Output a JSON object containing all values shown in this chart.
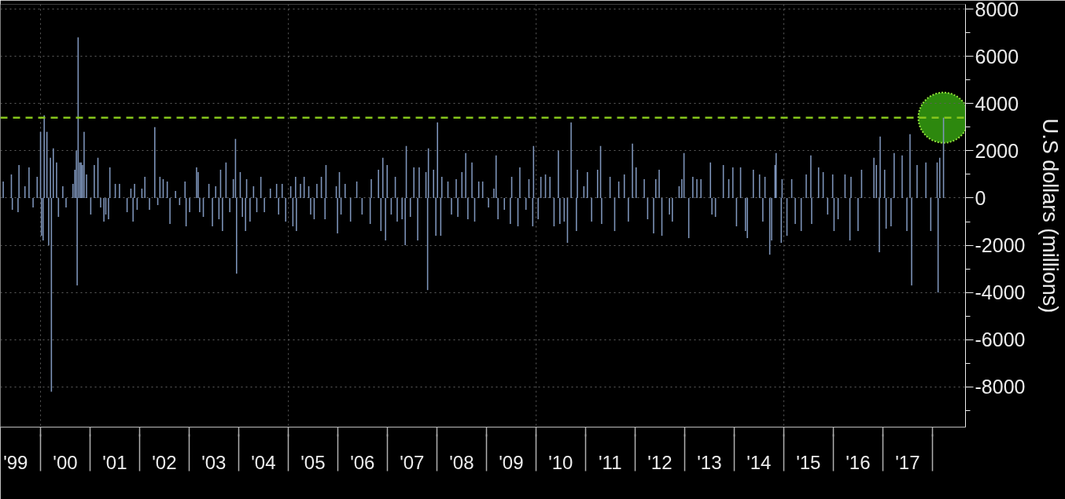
{
  "chart_data": {
    "type": "bar",
    "ylabel": "U.S dollars (millions)",
    "xlim": [
      "1999-03-11",
      "2018-09-01"
    ],
    "xticks": [
      {
        "value": "1999-07-01",
        "label": "'99"
      },
      {
        "value": "2000-07-01",
        "label": "'00"
      },
      {
        "value": "2001-07-01",
        "label": "'01"
      },
      {
        "value": "2002-07-01",
        "label": "'02"
      },
      {
        "value": "2003-07-01",
        "label": "'03"
      },
      {
        "value": "2004-07-01",
        "label": "'04"
      },
      {
        "value": "2005-07-01",
        "label": "'05"
      },
      {
        "value": "2006-07-01",
        "label": "'06"
      },
      {
        "value": "2007-07-01",
        "label": "'07"
      },
      {
        "value": "2008-07-01",
        "label": "'08"
      },
      {
        "value": "2009-07-01",
        "label": "'09"
      },
      {
        "value": "2010-07-01",
        "label": "'10"
      },
      {
        "value": "2011-07-01",
        "label": "'11"
      },
      {
        "value": "2012-07-01",
        "label": "'12"
      },
      {
        "value": "2013-07-01",
        "label": "'13"
      },
      {
        "value": "2014-07-01",
        "label": "'14"
      },
      {
        "value": "2015-07-01",
        "label": "'15"
      },
      {
        "value": "2016-07-01",
        "label": "'16"
      },
      {
        "value": "2017-07-01",
        "label": "'17"
      },
      {
        "value": "2000-01-01",
        "label": null
      },
      {
        "value": "2001-01-01",
        "label": null
      },
      {
        "value": "2002-01-01",
        "label": null
      },
      {
        "value": "2003-01-01",
        "label": null
      },
      {
        "value": "2004-01-01",
        "label": null
      },
      {
        "value": "2005-01-01",
        "label": null
      },
      {
        "value": "2006-01-01",
        "label": null
      },
      {
        "value": "2007-01-01",
        "label": null
      },
      {
        "value": "2008-01-01",
        "label": null
      },
      {
        "value": "2009-01-01",
        "label": null
      },
      {
        "value": "2010-01-01",
        "label": null
      },
      {
        "value": "2011-01-01",
        "label": null
      },
      {
        "value": "2012-01-01",
        "label": null
      },
      {
        "value": "2013-01-01",
        "label": null
      },
      {
        "value": "2014-01-01",
        "label": null
      },
      {
        "value": "2015-01-01",
        "label": null
      },
      {
        "value": "2016-01-01",
        "label": null
      },
      {
        "value": "2017-01-01",
        "label": null
      },
      {
        "value": "2018-01-01",
        "label": null
      }
    ],
    "ylim": [
      -9700,
      8200
    ],
    "yticks": [
      {
        "value": -9000,
        "label": null
      },
      -8000,
      {
        "value": -7000,
        "label": null
      },
      -6000,
      {
        "value": -5000,
        "label": null
      },
      -4000,
      {
        "value": -3000,
        "label": null
      },
      -2000,
      {
        "value": -1000,
        "label": null
      },
      0,
      {
        "value": 1000,
        "label": null
      },
      2000,
      {
        "value": 3000,
        "label": null
      },
      4000,
      {
        "value": 5000,
        "label": null
      },
      6000,
      {
        "value": 7000,
        "label": null
      },
      8000
    ],
    "grid": "y",
    "ref_lines": [
      {
        "axis": "x",
        "value": "2000-01-01",
        "color": "#5e5e5e",
        "line_style": "dotted"
      },
      {
        "axis": "x",
        "value": "2005-01-01",
        "color": "#5e5e5e",
        "line_style": "dotted"
      },
      {
        "axis": "x",
        "value": "2010-01-01",
        "color": "#5e5e5e",
        "line_style": "dotted"
      },
      {
        "axis": "x",
        "value": "2015-01-01",
        "color": "#5e5e5e",
        "line_style": "dotted"
      },
      {
        "axis": "y",
        "value": 3400,
        "color": "#86c51c",
        "line_style": "dashed"
      }
    ],
    "x": [
      "1999-04-01",
      "1999-05-31",
      "1999-06-07",
      "1999-07-19",
      "1999-07-26",
      "1999-09-08",
      "1999-10-08",
      "1999-11-07",
      "1999-12-07",
      "2000-01-01",
      "2000-01-08",
      "2000-01-20",
      "2000-01-28",
      "2000-02-17",
      "2000-03-01",
      "2000-03-14",
      "2000-03-21",
      "2000-04-04",
      "2000-04-28",
      "2000-05-12",
      "2000-06-13",
      "2000-07-07",
      "2000-08-27",
      "2000-09-10",
      "2000-09-21",
      "2000-09-27",
      "2000-10-04",
      "2000-10-16",
      "2000-10-26",
      "2000-11-05",
      "2000-11-17",
      "2000-12-05",
      "2001-01-05",
      "2001-01-31",
      "2001-02-27",
      "2001-03-19",
      "2001-04-12",
      "2001-04-26",
      "2001-05-16",
      "2001-05-26",
      "2001-07-05",
      "2001-08-05",
      "2001-09-30",
      "2001-10-28",
      "2001-11-13",
      "2001-11-24",
      "2001-12-13",
      "2002-01-17",
      "2002-02-08",
      "2002-03-14",
      "2002-04-22",
      "2002-05-14",
      "2002-05-30",
      "2002-06-23",
      "2002-07-23",
      "2002-08-12",
      "2002-09-22",
      "2002-10-22",
      "2002-12-01",
      "2002-12-09",
      "2003-01-04",
      "2003-02-24",
      "2003-03-08",
      "2003-03-19",
      "2003-04-15",
      "2003-05-26",
      "2003-06-21",
      "2003-07-15",
      "2003-08-08",
      "2003-08-20",
      "2003-09-03",
      "2003-09-29",
      "2003-10-27",
      "2003-11-22",
      "2003-12-08",
      "2003-12-16",
      "2004-01-12",
      "2004-01-28",
      "2004-02-20",
      "2004-02-28",
      "2004-03-24",
      "2004-04-19",
      "2004-05-13",
      "2004-06-12",
      "2004-07-08",
      "2004-08-21",
      "2004-10-06",
      "2004-10-21",
      "2004-11-16",
      "2004-12-12",
      "2005-01-18",
      "2005-02-03",
      "2005-02-23",
      "2005-03-01",
      "2005-03-31",
      "2005-04-27",
      "2005-05-31",
      "2005-06-14",
      "2005-07-10",
      "2005-07-30",
      "2005-09-01",
      "2005-09-28",
      "2005-10-05",
      "2005-12-20",
      "2005-12-29",
      "2006-01-12",
      "2006-01-24",
      "2006-02-23",
      "2006-04-04",
      "2006-05-20",
      "2006-06-28",
      "2006-08-27",
      "2006-09-04",
      "2006-10-27",
      "2006-11-14",
      "2006-11-28",
      "2006-12-18",
      "2006-12-30",
      "2007-01-29",
      "2007-02-28",
      "2007-03-14",
      "2007-04-19",
      "2007-05-12",
      "2007-05-20",
      "2007-06-19",
      "2007-07-15",
      "2007-08-12",
      "2007-08-23",
      "2007-10-12",
      "2007-10-24",
      "2007-10-30",
      "2007-12-07",
      "2007-12-24",
      "2008-01-05",
      "2008-01-29",
      "2008-02-06",
      "2008-03-22",
      "2008-04-17",
      "2008-05-22",
      "2008-06-03",
      "2008-07-03",
      "2008-07-31",
      "2008-08-16",
      "2008-09-15",
      "2008-10-05",
      "2008-11-04",
      "2008-12-03",
      "2009-01-15",
      "2009-02-24",
      "2009-03-12",
      "2009-03-26",
      "2009-05-12",
      "2009-06-25",
      "2009-07-05",
      "2009-08-20",
      "2009-09-03",
      "2009-10-18",
      "2009-11-09",
      "2009-12-07",
      "2009-12-13",
      "2010-01-16",
      "2010-02-05",
      "2010-03-11",
      "2010-04-13",
      "2010-05-13",
      "2010-06-14",
      "2010-06-25",
      "2010-07-27",
      "2010-08-20",
      "2010-09-16",
      "2010-10-25",
      "2010-11-01",
      "2010-12-19",
      "2011-01-14",
      "2011-02-14",
      "2011-03-30",
      "2011-04-21",
      "2011-04-29",
      "2011-06-30",
      "2011-08-03",
      "2011-09-02",
      "2011-10-13",
      "2011-11-12",
      "2011-12-12",
      "2012-01-08",
      "2012-03-08",
      "2012-04-02",
      "2012-05-16",
      "2012-06-01",
      "2012-06-26",
      "2012-07-16",
      "2012-09-10",
      "2012-10-01",
      "2012-11-20",
      "2012-12-10",
      "2012-12-26",
      "2013-01-30",
      "2013-03-01",
      "2013-03-31",
      "2013-04-30",
      "2013-07-09",
      "2013-07-20",
      "2013-08-15",
      "2013-10-12",
      "2013-11-21",
      "2013-12-21",
      "2014-01-17",
      "2014-02-16",
      "2014-03-24",
      "2014-04-07",
      "2014-05-21",
      "2014-07-06",
      "2014-07-30",
      "2014-08-15",
      "2014-09-19",
      "2014-10-03",
      "2014-10-28",
      "2014-11-05",
      "2014-12-13",
      "2014-12-19",
      "2015-01-24",
      "2015-02-28",
      "2015-03-26",
      "2015-05-09",
      "2015-06-15",
      "2015-07-19",
      "2015-07-25",
      "2015-09-14",
      "2015-10-18",
      "2015-11-20",
      "2015-12-27",
      "2016-01-06",
      "2016-02-05",
      "2016-03-27",
      "2016-05-02",
      "2016-05-10",
      "2016-07-01",
      "2016-07-27",
      "2016-10-26",
      "2016-11-13",
      "2016-12-05",
      "2016-12-11",
      "2017-01-13",
      "2017-01-24",
      "2017-03-01",
      "2017-03-24",
      "2017-05-22",
      "2017-06-26",
      "2017-07-19",
      "2017-07-31",
      "2017-09-09",
      "2017-11-13",
      "2017-12-19",
      "2018-02-04",
      "2018-02-11",
      "2018-02-23",
      "2018-03-23"
    ],
    "series": [
      {
        "color": "#7f96bc",
        "values": [
          700,
          1000,
          -500,
          -600,
          1400,
          500,
          1300,
          -400,
          900,
          2800,
          -1600,
          -1800,
          3500,
          2800,
          -2000,
          1700,
          -8200,
          2100,
          1500,
          -800,
          500,
          -400,
          600,
          1200,
          2000,
          -3700,
          6800,
          1500,
          1500,
          1400,
          2800,
          1000,
          -700,
          1400,
          1700,
          -400,
          -1000,
          -700,
          -900,
          1300,
          600,
          600,
          -600,
          400,
          -1000,
          600,
          -500,
          400,
          900,
          -500,
          3000,
          -300,
          900,
          800,
          700,
          -1100,
          300,
          -300,
          700,
          -1200,
          -600,
          1300,
          1100,
          -600,
          -800,
          600,
          -1200,
          500,
          -900,
          1200,
          -1400,
          1500,
          -600,
          800,
          2500,
          -3200,
          1100,
          -800,
          -1400,
          800,
          -1000,
          500,
          -600,
          900,
          -600,
          400,
          600,
          -700,
          600,
          -1000,
          500,
          -1200,
          900,
          -1400,
          600,
          900,
          500,
          -700,
          -900,
          600,
          900,
          -900,
          1400,
          500,
          -1500,
          1100,
          -700,
          600,
          -1000,
          700,
          -700,
          -1100,
          800,
          1200,
          -1400,
          1700,
          -1800,
          1400,
          -700,
          900,
          -1000,
          -900,
          -2000,
          2200,
          -800,
          1300,
          -1800,
          1300,
          1100,
          -3900,
          2100,
          1200,
          -1600,
          3200,
          -1600,
          900,
          700,
          -700,
          800,
          -800,
          1100,
          1900,
          -900,
          1500,
          -1000,
          700,
          700,
          -400,
          400,
          1800,
          -900,
          -500,
          -1100,
          900,
          -1200,
          1300,
          -500,
          800,
          -1200,
          2200,
          -900,
          900,
          1000,
          900,
          -1200,
          2000,
          -1100,
          -1000,
          -1900,
          3200,
          -1400,
          1200,
          500,
          1100,
          -1000,
          1200,
          2200,
          -1100,
          900,
          -1400,
          700,
          1000,
          -1000,
          2300,
          1300,
          800,
          -900,
          -1500,
          800,
          1200,
          -1600,
          -700,
          -1000,
          500,
          800,
          1900,
          -1700,
          900,
          800,
          800,
          1500,
          -700,
          -800,
          1400,
          800,
          1300,
          -1200,
          1300,
          -1400,
          -1700,
          1200,
          1000,
          -1000,
          900,
          -2400,
          -1800,
          1400,
          1900,
          -1900,
          800,
          -1600,
          800,
          -1100,
          -1400,
          1000,
          1800,
          -1100,
          1300,
          1100,
          -700,
          1000,
          -1400,
          -900,
          1000,
          -1800,
          900,
          -1400,
          1200,
          1700,
          1400,
          -2300,
          2600,
          1200,
          -1300,
          -1200,
          1900,
          1800,
          -1400,
          2700,
          -3700,
          1400,
          1500,
          -1400,
          1500,
          -4000,
          1700,
          3400
        ]
      },
      {
        "type": "scatter",
        "x": [
          "2018-03-23"
        ],
        "values": [
          3400
        ],
        "color": "#2f8f0f",
        "marker": "circle"
      }
    ]
  }
}
